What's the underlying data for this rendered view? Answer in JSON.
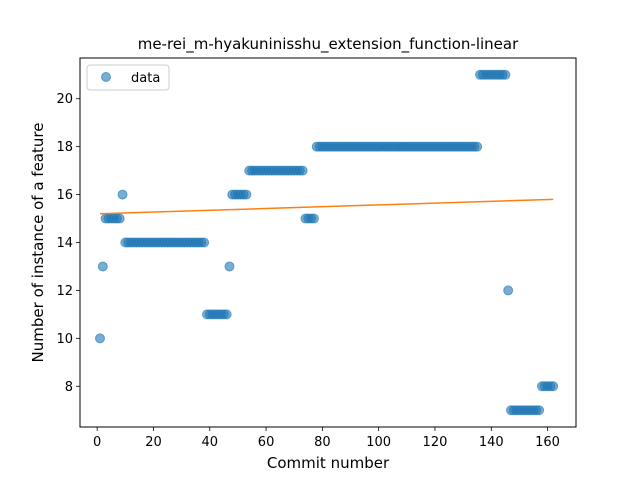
{
  "chart_data": {
    "type": "scatter",
    "title": "me-rei_m-hyakuninisshu_extension_function-linear",
    "xlabel": "Commit number",
    "ylabel": "Number of instance of a feature",
    "xlim": [
      -6.1,
      170.1
    ],
    "ylim": [
      6.3,
      21.7
    ],
    "xticks": [
      0,
      20,
      40,
      60,
      80,
      100,
      120,
      140,
      160
    ],
    "yticks": [
      8,
      10,
      12,
      14,
      16,
      18,
      20
    ],
    "grid": false,
    "legend_position": "top-left",
    "colors": {
      "points": "#1f77b4",
      "fit": "#ff7f0e"
    },
    "series": [
      {
        "name": "data",
        "kind": "scatter",
        "points": [
          [
            1,
            10
          ],
          [
            2,
            13
          ],
          [
            3,
            15
          ],
          [
            4,
            15
          ],
          [
            5,
            15
          ],
          [
            6,
            15
          ],
          [
            7,
            15
          ],
          [
            8,
            15
          ],
          [
            9,
            16
          ],
          [
            10,
            14
          ],
          [
            11,
            14
          ],
          [
            12,
            14
          ],
          [
            13,
            14
          ],
          [
            14,
            14
          ],
          [
            15,
            14
          ],
          [
            16,
            14
          ],
          [
            17,
            14
          ],
          [
            18,
            14
          ],
          [
            19,
            14
          ],
          [
            20,
            14
          ],
          [
            21,
            14
          ],
          [
            22,
            14
          ],
          [
            23,
            14
          ],
          [
            24,
            14
          ],
          [
            25,
            14
          ],
          [
            26,
            14
          ],
          [
            27,
            14
          ],
          [
            28,
            14
          ],
          [
            29,
            14
          ],
          [
            30,
            14
          ],
          [
            31,
            14
          ],
          [
            32,
            14
          ],
          [
            33,
            14
          ],
          [
            34,
            14
          ],
          [
            35,
            14
          ],
          [
            36,
            14
          ],
          [
            37,
            14
          ],
          [
            38,
            14
          ],
          [
            39,
            11
          ],
          [
            40,
            11
          ],
          [
            41,
            11
          ],
          [
            42,
            11
          ],
          [
            43,
            11
          ],
          [
            44,
            11
          ],
          [
            45,
            11
          ],
          [
            46,
            11
          ],
          [
            47,
            13
          ],
          [
            48,
            16
          ],
          [
            49,
            16
          ],
          [
            50,
            16
          ],
          [
            51,
            16
          ],
          [
            52,
            16
          ],
          [
            53,
            16
          ],
          [
            54,
            17
          ],
          [
            55,
            17
          ],
          [
            56,
            17
          ],
          [
            57,
            17
          ],
          [
            58,
            17
          ],
          [
            59,
            17
          ],
          [
            60,
            17
          ],
          [
            61,
            17
          ],
          [
            62,
            17
          ],
          [
            63,
            17
          ],
          [
            64,
            17
          ],
          [
            65,
            17
          ],
          [
            66,
            17
          ],
          [
            67,
            17
          ],
          [
            68,
            17
          ],
          [
            69,
            17
          ],
          [
            70,
            17
          ],
          [
            71,
            17
          ],
          [
            72,
            17
          ],
          [
            73,
            17
          ],
          [
            74,
            15
          ],
          [
            75,
            15
          ],
          [
            76,
            15
          ],
          [
            77,
            15
          ],
          [
            78,
            18
          ],
          [
            79,
            18
          ],
          [
            80,
            18
          ],
          [
            81,
            18
          ],
          [
            82,
            18
          ],
          [
            83,
            18
          ],
          [
            84,
            18
          ],
          [
            85,
            18
          ],
          [
            86,
            18
          ],
          [
            87,
            18
          ],
          [
            88,
            18
          ],
          [
            89,
            18
          ],
          [
            90,
            18
          ],
          [
            91,
            18
          ],
          [
            92,
            18
          ],
          [
            93,
            18
          ],
          [
            94,
            18
          ],
          [
            95,
            18
          ],
          [
            96,
            18
          ],
          [
            97,
            18
          ],
          [
            98,
            18
          ],
          [
            99,
            18
          ],
          [
            100,
            18
          ],
          [
            101,
            18
          ],
          [
            102,
            18
          ],
          [
            103,
            18
          ],
          [
            104,
            18
          ],
          [
            105,
            18
          ],
          [
            106,
            18
          ],
          [
            107,
            18
          ],
          [
            108,
            18
          ],
          [
            109,
            18
          ],
          [
            110,
            18
          ],
          [
            111,
            18
          ],
          [
            112,
            18
          ],
          [
            113,
            18
          ],
          [
            114,
            18
          ],
          [
            115,
            18
          ],
          [
            116,
            18
          ],
          [
            117,
            18
          ],
          [
            118,
            18
          ],
          [
            119,
            18
          ],
          [
            120,
            18
          ],
          [
            121,
            18
          ],
          [
            122,
            18
          ],
          [
            123,
            18
          ],
          [
            124,
            18
          ],
          [
            125,
            18
          ],
          [
            126,
            18
          ],
          [
            127,
            18
          ],
          [
            128,
            18
          ],
          [
            129,
            18
          ],
          [
            130,
            18
          ],
          [
            131,
            18
          ],
          [
            132,
            18
          ],
          [
            133,
            18
          ],
          [
            134,
            18
          ],
          [
            135,
            18
          ],
          [
            136,
            21
          ],
          [
            137,
            21
          ],
          [
            138,
            21
          ],
          [
            139,
            21
          ],
          [
            140,
            21
          ],
          [
            141,
            21
          ],
          [
            142,
            21
          ],
          [
            143,
            21
          ],
          [
            144,
            21
          ],
          [
            145,
            21
          ],
          [
            146,
            12
          ],
          [
            147,
            7
          ],
          [
            148,
            7
          ],
          [
            149,
            7
          ],
          [
            150,
            7
          ],
          [
            151,
            7
          ],
          [
            152,
            7
          ],
          [
            153,
            7
          ],
          [
            154,
            7
          ],
          [
            155,
            7
          ],
          [
            156,
            7
          ],
          [
            157,
            7
          ],
          [
            158,
            8
          ],
          [
            159,
            8
          ],
          [
            160,
            8
          ],
          [
            161,
            8
          ],
          [
            162,
            8
          ]
        ]
      },
      {
        "kind": "line",
        "x": [
          1,
          162
        ],
        "y": [
          15.2,
          15.8
        ]
      }
    ]
  }
}
